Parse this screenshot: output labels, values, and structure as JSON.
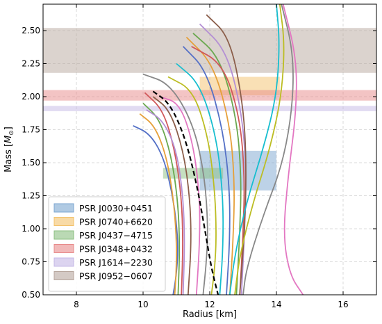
{
  "chart_data": {
    "type": "line",
    "xlabel": "Radius [km]",
    "ylabel": "Mass [$M_\\odot$]",
    "xlim": [
      7,
      17
    ],
    "ylim": [
      0.5,
      2.7
    ],
    "xticks": [
      8,
      10,
      12,
      14,
      16
    ],
    "yticks": [
      0.5,
      0.75,
      1.0,
      1.25,
      1.5,
      1.75,
      2.0,
      2.25,
      2.5
    ],
    "xtick_labels": [
      "8",
      "10",
      "12",
      "14",
      "16"
    ],
    "ytick_labels": [
      "0.50",
      "0.75",
      "1.00",
      "1.25",
      "1.50",
      "1.75",
      "2.00",
      "2.25",
      "2.50"
    ],
    "grid": true,
    "legend_position": "lower-left",
    "constraints": [
      {
        "name": "PSR J0030+0451",
        "color": "#7ba6d0",
        "radius_range": [
          11.7,
          14.0
        ],
        "mass_range": [
          1.29,
          1.59
        ]
      },
      {
        "name": "PSR J0740+6620",
        "color": "#f3c26b",
        "radius_range": [
          11.7,
          14.1
        ],
        "mass_range": [
          2.01,
          2.15
        ]
      },
      {
        "name": "PSR J0437−4715",
        "color": "#8cbf82",
        "radius_range": [
          10.6,
          12.4
        ],
        "mass_range": [
          1.38,
          1.46
        ]
      },
      {
        "name": "PSR J0348+0432",
        "color": "#e88a8a",
        "radius_range": [
          7,
          17
        ],
        "mass_range": [
          1.97,
          2.05
        ]
      },
      {
        "name": "PSR J1614−2230",
        "color": "#c4b7e6",
        "radius_range": [
          7,
          17
        ],
        "mass_range": [
          1.89,
          1.93
        ]
      },
      {
        "name": "PSR J0952−0607",
        "color": "#b7a79e",
        "radius_range": [
          7,
          17
        ],
        "mass_range": [
          2.18,
          2.52
        ]
      }
    ],
    "series": [
      {
        "color": "#5470c6",
        "style": "solid",
        "x": [
          9.7,
          10.2,
          10.6,
          10.85,
          11.0,
          11.05,
          11.0,
          10.9
        ],
        "y": [
          1.78,
          1.72,
          1.55,
          1.3,
          1.05,
          0.85,
          0.65,
          0.5
        ]
      },
      {
        "color": "#e6a03a",
        "style": "solid",
        "x": [
          9.9,
          10.35,
          10.7,
          10.9,
          11.0,
          11.0,
          10.95
        ],
        "y": [
          1.87,
          1.78,
          1.55,
          1.25,
          0.95,
          0.7,
          0.5
        ]
      },
      {
        "color": "#6aa84f",
        "style": "solid",
        "x": [
          10.0,
          10.5,
          10.85,
          11.05,
          11.1,
          11.05
        ],
        "y": [
          1.95,
          1.83,
          1.55,
          1.2,
          0.85,
          0.5
        ]
      },
      {
        "color": "#d0585a",
        "style": "solid",
        "x": [
          10.05,
          10.6,
          10.95,
          11.15,
          11.2,
          11.15
        ],
        "y": [
          2.03,
          1.9,
          1.6,
          1.25,
          0.9,
          0.5
        ]
      },
      {
        "color": "#b48fd4",
        "style": "solid",
        "x": [
          10.1,
          10.6,
          11.0,
          11.2,
          11.25,
          11.2
        ],
        "y": [
          1.9,
          1.82,
          1.6,
          1.25,
          0.9,
          0.5
        ]
      },
      {
        "color": "#8b5e4a",
        "style": "solid",
        "x": [
          10.3,
          10.8,
          11.2,
          11.4,
          11.45,
          11.35
        ],
        "y": [
          2.0,
          1.9,
          1.6,
          1.25,
          0.9,
          0.5
        ]
      },
      {
        "color": "#e377c2",
        "style": "solid",
        "x": [
          10.5,
          11.1,
          11.5,
          11.7,
          11.7,
          11.6
        ],
        "y": [
          2.0,
          1.95,
          1.65,
          1.25,
          0.9,
          0.5
        ]
      },
      {
        "color": "#888888",
        "style": "solid",
        "x": [
          10.0,
          10.8,
          11.5,
          11.85,
          11.95,
          11.9,
          11.8
        ],
        "y": [
          2.17,
          2.1,
          1.8,
          1.4,
          1.0,
          0.75,
          0.5
        ]
      },
      {
        "color": "#bcbd22",
        "style": "solid",
        "x": [
          10.75,
          11.5,
          11.95,
          12.15,
          12.2,
          12.15,
          12.05
        ],
        "y": [
          2.15,
          2.05,
          1.7,
          1.3,
          0.95,
          0.7,
          0.5
        ]
      },
      {
        "color": "#17becf",
        "style": "solid",
        "x": [
          11.0,
          11.7,
          12.2,
          12.4,
          12.4,
          12.3
        ],
        "y": [
          2.25,
          2.1,
          1.7,
          1.25,
          0.85,
          0.5
        ]
      },
      {
        "color": "#5470c6",
        "style": "solid",
        "x": [
          11.2,
          11.9,
          12.4,
          12.6,
          12.6,
          12.5
        ],
        "y": [
          2.38,
          2.2,
          1.75,
          1.3,
          0.9,
          0.5
        ]
      },
      {
        "color": "#e6a03a",
        "style": "solid",
        "x": [
          11.3,
          12.1,
          12.6,
          12.75,
          12.7,
          12.6
        ],
        "y": [
          2.45,
          2.25,
          1.8,
          1.35,
          0.9,
          0.5
        ]
      },
      {
        "color": "#6aa84f",
        "style": "solid",
        "x": [
          11.5,
          12.3,
          12.8,
          12.95,
          12.9,
          12.8
        ],
        "y": [
          2.48,
          2.3,
          1.85,
          1.4,
          0.95,
          0.5
        ]
      },
      {
        "color": "#d0585a",
        "style": "solid",
        "x": [
          11.45,
          12.4,
          12.9,
          13.05,
          13.0,
          12.9
        ],
        "y": [
          2.38,
          2.25,
          1.85,
          1.4,
          0.95,
          0.5
        ]
      },
      {
        "color": "#b48fd4",
        "style": "solid",
        "x": [
          11.7,
          12.5,
          12.95,
          13.1,
          13.05,
          12.95
        ],
        "y": [
          2.55,
          2.35,
          1.9,
          1.45,
          1.0,
          0.5
        ]
      },
      {
        "color": "#8b5e4a",
        "style": "solid",
        "x": [
          11.9,
          12.6,
          13.0,
          13.1,
          13.05,
          12.9
        ],
        "y": [
          2.62,
          2.45,
          1.95,
          1.5,
          1.0,
          0.5
        ]
      },
      {
        "color": "#17becf",
        "style": "solid",
        "x": [
          14.0,
          14.1,
          14.0,
          13.6,
          13.1,
          12.75,
          12.6
        ],
        "y": [
          2.7,
          2.4,
          2.0,
          1.6,
          1.2,
          0.8,
          0.5
        ]
      },
      {
        "color": "#bcbd22",
        "style": "solid",
        "x": [
          14.1,
          14.25,
          14.15,
          13.8,
          13.3,
          12.9,
          12.75
        ],
        "y": [
          2.7,
          2.4,
          2.0,
          1.6,
          1.2,
          0.8,
          0.5
        ]
      },
      {
        "color": "#888888",
        "style": "solid",
        "x": [
          14.15,
          14.5,
          14.5,
          14.2,
          13.6,
          13.1,
          13.0
        ],
        "y": [
          2.7,
          2.35,
          1.95,
          1.5,
          1.1,
          0.7,
          0.5
        ]
      },
      {
        "color": "#e377c2",
        "style": "solid",
        "x": [
          14.2,
          14.6,
          14.6,
          14.35,
          14.2,
          14.4,
          14.8
        ],
        "y": [
          2.7,
          2.3,
          1.9,
          1.4,
          0.95,
          0.65,
          0.5
        ]
      },
      {
        "color": "#000000",
        "style": "dashed",
        "x": [
          10.3,
          10.8,
          11.25,
          11.6,
          11.85,
          12.05,
          12.25
        ],
        "y": [
          2.04,
          1.95,
          1.7,
          1.35,
          1.0,
          0.7,
          0.5
        ]
      }
    ]
  }
}
